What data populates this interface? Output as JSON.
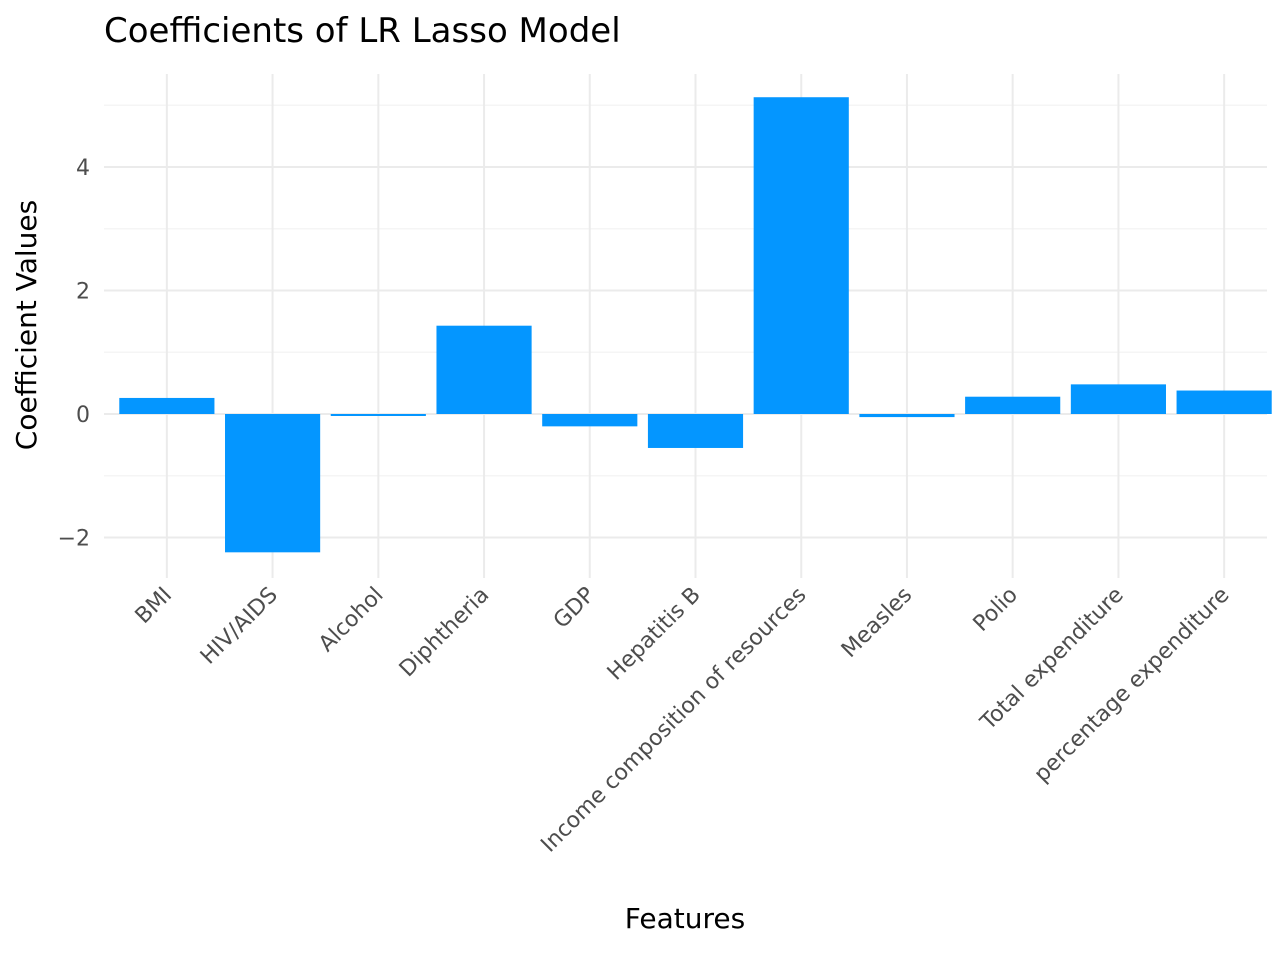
{
  "chart_data": {
    "type": "bar",
    "title": "Coefficients of LR Lasso Model",
    "xlabel": "Features",
    "ylabel": "Coefficient Values",
    "categories": [
      "BMI",
      "HIV/AIDS",
      "Alcohol",
      "Diphtheria",
      "GDP",
      "Hepatitis B",
      "Income composition of resources",
      "Measles",
      "Polio",
      "Total expenditure",
      "percentage expenditure"
    ],
    "values": [
      0.26,
      -2.24,
      -0.02,
      1.43,
      -0.2,
      -0.55,
      5.13,
      -0.05,
      0.28,
      0.48,
      0.38
    ],
    "ylim": [
      -2.6,
      5.35
    ],
    "yticks": [
      -2,
      0,
      2,
      4
    ],
    "ytick_labels": [
      "−2",
      "0",
      "2",
      "4"
    ],
    "grid": true,
    "bar_color": "#0496FF"
  }
}
